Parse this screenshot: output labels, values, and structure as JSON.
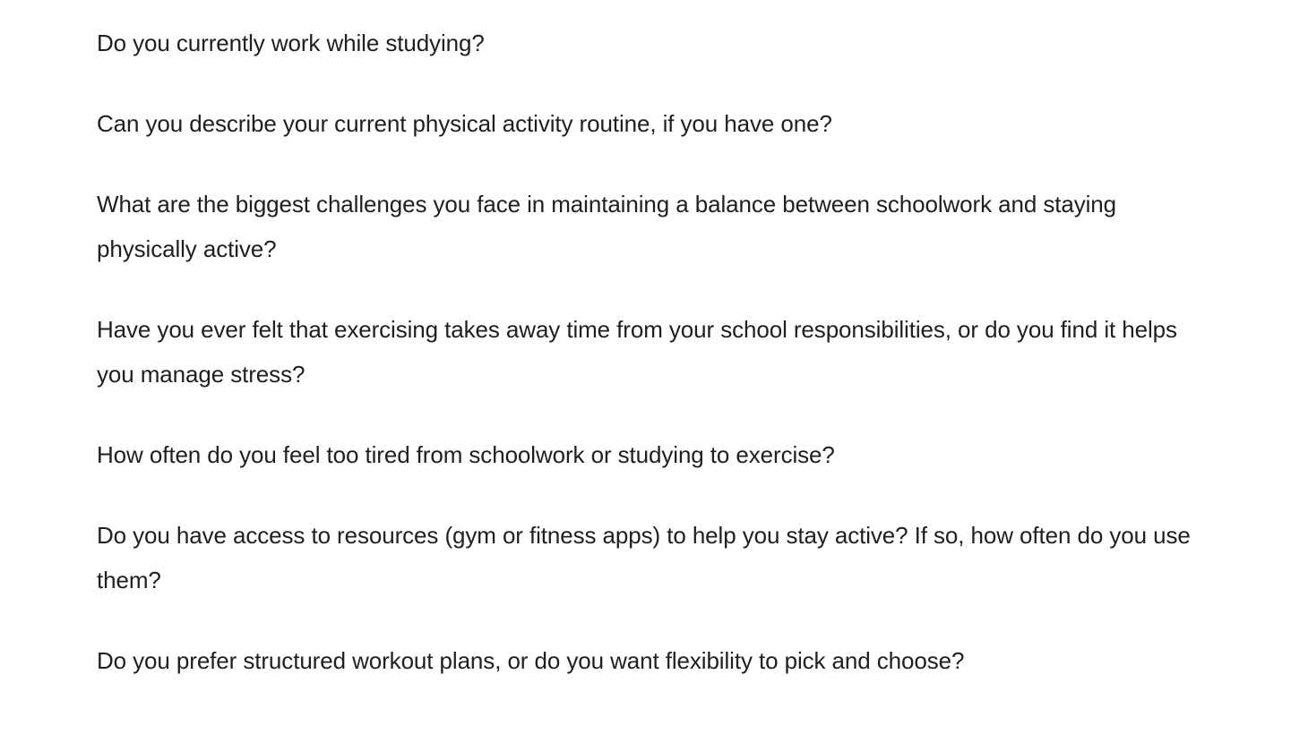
{
  "questions": [
    "Do you currently work while studying?",
    "Can you describe your current physical activity routine, if you have one?",
    "What are the biggest challenges you face in maintaining a balance between schoolwork and staying physically active?",
    "Have you ever felt that exercising takes away time from your school responsibilities, or do you find it helps you manage stress?",
    "How often do you feel too tired from schoolwork or studying to exercise?",
    "Do you have access to resources (gym or fitness apps) to help you stay active? If so, how often do you use them?",
    "Do you prefer structured workout plans, or do you want flexibility to pick and choose?"
  ]
}
